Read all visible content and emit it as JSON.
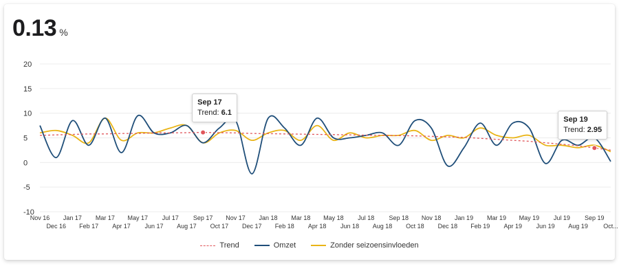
{
  "kpi": {
    "value": "0.13",
    "unit": "%"
  },
  "tooltips": [
    {
      "title": "Sep 17",
      "label": "Trend:",
      "value": "6.1"
    },
    {
      "title": "Sep 19",
      "label": "Trend:",
      "value": "2.95"
    }
  ],
  "legend": [
    {
      "name": "Trend"
    },
    {
      "name": "Omzet"
    },
    {
      "name": "Zonder seizoensinvloeden"
    }
  ],
  "colors": {
    "trend": "#e0555a",
    "omzet": "#1f4e79",
    "seizoen": "#e9b416"
  },
  "chart_data": {
    "type": "line",
    "categories": [
      "Nov 16",
      "Dec 16",
      "Jan 17",
      "Feb 17",
      "Mar 17",
      "Apr 17",
      "May 17",
      "Jun 17",
      "Jul 17",
      "Aug 17",
      "Sep 17",
      "Oct 17",
      "Nov 17",
      "Dec 17",
      "Jan 18",
      "Feb 18",
      "Mar 18",
      "Apr 18",
      "May 18",
      "Jun 18",
      "Jul 18",
      "Aug 18",
      "Sep 18",
      "Oct 18",
      "Nov 18",
      "Dec 18",
      "Jan 19",
      "Feb 19",
      "Mar 19",
      "Apr 19",
      "May 19",
      "Jun 19",
      "Jul 19",
      "Aug 19",
      "Sep 19",
      "Oct..."
    ],
    "yticks": [
      20,
      15,
      10,
      5,
      0,
      -5,
      -10
    ],
    "ylim": [
      -10,
      20
    ],
    "grid": true,
    "legend_position": "bottom-center",
    "series": [
      {
        "name": "Trend",
        "style": "dashed",
        "values": [
          5.5,
          5.6,
          5.7,
          5.8,
          5.8,
          5.9,
          5.9,
          6.0,
          6.0,
          6.05,
          6.1,
          6.05,
          6.0,
          5.9,
          5.85,
          5.8,
          5.75,
          5.7,
          5.65,
          5.6,
          5.55,
          5.5,
          5.45,
          5.4,
          5.3,
          5.2,
          5.1,
          4.9,
          4.7,
          4.5,
          4.3,
          4.0,
          3.7,
          3.4,
          2.95,
          2.5
        ]
      },
      {
        "name": "Omzet",
        "style": "solid",
        "values": [
          7.5,
          1.0,
          8.5,
          3.5,
          9.0,
          2.0,
          9.5,
          6.0,
          6.0,
          7.5,
          4.0,
          7.0,
          8.5,
          -2.3,
          9.0,
          7.0,
          3.5,
          9.0,
          5.0,
          5.0,
          5.5,
          6.0,
          3.5,
          8.5,
          7.0,
          -0.7,
          3.0,
          8.0,
          3.5,
          8.0,
          7.0,
          -0.2,
          4.5,
          3.5,
          5.0,
          0.2
        ]
      },
      {
        "name": "Zonder seizoensinvloeden",
        "style": "solid",
        "values": [
          6.0,
          6.5,
          5.5,
          4.0,
          9.0,
          4.5,
          6.0,
          6.0,
          7.0,
          7.5,
          4.0,
          6.0,
          6.5,
          4.5,
          6.0,
          6.5,
          4.5,
          7.5,
          4.5,
          6.0,
          5.0,
          5.5,
          5.5,
          6.5,
          4.5,
          5.5,
          5.0,
          7.0,
          5.5,
          5.0,
          5.5,
          3.5,
          3.5,
          3.0,
          3.5,
          2.2
        ]
      }
    ]
  }
}
